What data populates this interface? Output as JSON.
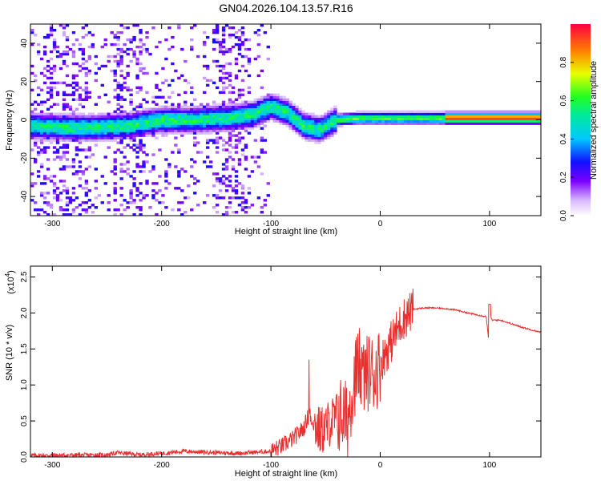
{
  "title": "GN04.2026.104.13.57.R16",
  "colors": {
    "axis": "#000000",
    "snr_line": "#e83030",
    "background": "#ffffff"
  },
  "chart_data": [
    {
      "type": "heatmap",
      "xlabel": "Height of straight line (km)",
      "ylabel": "Frequency (Hz)",
      "xlim": [
        -320,
        147
      ],
      "ylim": [
        -50,
        50
      ],
      "xticks": [
        -300,
        -200,
        -100,
        0,
        100
      ],
      "yticks": [
        -40,
        -20,
        0,
        20,
        40
      ],
      "colorbar": {
        "label": "Normalized spectral amplitude",
        "range": [
          0,
          1
        ],
        "ticks": [
          0.0,
          0.2,
          0.4,
          0.6,
          0.8
        ],
        "colormap": "rainbow (violet→blue→cyan→green→yellow→red)"
      },
      "ridge": [
        {
          "x": -318,
          "y": -3
        },
        {
          "x": -290,
          "y": -4
        },
        {
          "x": -260,
          "y": -4
        },
        {
          "x": -230,
          "y": -3
        },
        {
          "x": -200,
          "y": 0
        },
        {
          "x": -170,
          "y": 0
        },
        {
          "x": -140,
          "y": 1
        },
        {
          "x": -115,
          "y": 3
        },
        {
          "x": -100,
          "y": 7
        },
        {
          "x": -85,
          "y": 4
        },
        {
          "x": -70,
          "y": -3
        },
        {
          "x": -55,
          "y": -5
        },
        {
          "x": -40,
          "y": 0
        },
        {
          "x": -20,
          "y": 1
        },
        {
          "x": 0,
          "y": 1
        },
        {
          "x": 50,
          "y": 1
        },
        {
          "x": 100,
          "y": 1
        },
        {
          "x": 147,
          "y": 1
        }
      ],
      "high_amplitude_region": {
        "x_start": 60,
        "x_end": 147,
        "y": 1,
        "level": 0.95
      }
    },
    {
      "type": "line",
      "xlabel": "Height of straight line (km)",
      "ylabel": "SNR (10 * v/v)",
      "scale_label": "(x10",
      "scale_exponent": "4",
      "xlim": [
        -320,
        147
      ],
      "ylim": [
        0,
        2.65
      ],
      "xticks": [
        -300,
        -200,
        -100,
        0,
        100
      ],
      "yticks": [
        0.0,
        0.5,
        1.0,
        1.5,
        2.0,
        2.5
      ],
      "series": [
        {
          "name": "SNR",
          "x": [
            -320,
            -250,
            -240,
            -220,
            -200,
            -180,
            -150,
            -130,
            -100,
            -90,
            -80,
            -70,
            -65,
            -60,
            -55,
            -50,
            -45,
            -40,
            -35,
            -30,
            -25,
            -20,
            -15,
            -10,
            -5,
            0,
            10,
            20,
            30,
            40,
            50,
            60,
            70,
            80,
            90,
            97,
            99,
            100,
            102,
            110,
            120,
            130,
            147
          ],
          "values": [
            0.02,
            0.03,
            0.06,
            0.03,
            0.05,
            0.08,
            0.06,
            0.05,
            0.08,
            0.15,
            0.25,
            0.4,
            0.6,
            0.45,
            0.35,
            0.4,
            0.5,
            0.55,
            0.6,
            0.5,
            1.0,
            1.3,
            1.1,
            1.2,
            1.15,
            1.3,
            1.6,
            1.9,
            2.05,
            2.07,
            2.07,
            2.06,
            2.04,
            2.0,
            1.97,
            1.95,
            1.65,
            2.05,
            1.9,
            1.9,
            1.85,
            1.8,
            1.73
          ]
        }
      ]
    }
  ]
}
